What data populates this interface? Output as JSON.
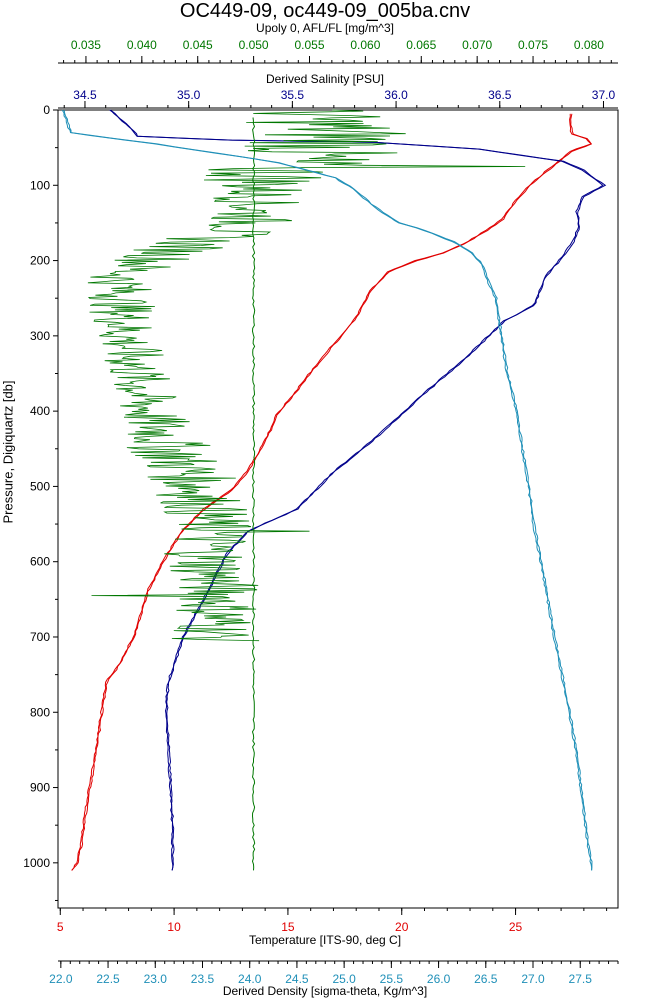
{
  "colors": {
    "afl": "#007700",
    "salinity": "#00008b",
    "temperature": "#e00000",
    "density": "#2090b8",
    "frame": "#000000"
  },
  "chart_data": {
    "type": "line",
    "title": "OC449-09, oc449-09_005ba.cnv",
    "ylabel": "Pressure, Digiquartz [db]",
    "ylim": [
      0,
      1060
    ],
    "yticks": [
      "0",
      "100",
      "200",
      "300",
      "400",
      "500",
      "600",
      "700",
      "800",
      "900",
      "1000"
    ],
    "grid": false,
    "axes": {
      "afl": {
        "label": "Upoly 0, AFL/FL [mg/m^3]",
        "range": [
          0.0325,
          0.0826
        ],
        "ticks": [
          "0.035",
          "0.040",
          "0.045",
          "0.050",
          "0.055",
          "0.060",
          "0.065",
          "0.070",
          "0.075",
          "0.080"
        ]
      },
      "salinity": {
        "label": "Derived Salinity [PSU]",
        "range": [
          34.37,
          37.07
        ],
        "ticks": [
          "34.5",
          "35.0",
          "35.5",
          "36.0",
          "36.5",
          "37.0"
        ]
      },
      "temperature": {
        "label": "Temperature [ITS-90, deg C]",
        "range": [
          4.9,
          29.5
        ],
        "ticks": [
          "5",
          "10",
          "15",
          "20",
          "25"
        ]
      },
      "density": {
        "label": "Derived Density [sigma-theta, Kg/m^3]",
        "range": [
          21.97,
          27.9
        ],
        "ticks": [
          "22.0",
          "22.5",
          "23.0",
          "23.5",
          "24.0",
          "24.5",
          "25.0",
          "25.5",
          "26.0",
          "26.5",
          "27.0",
          "27.5"
        ]
      }
    },
    "series": [
      {
        "name": "Temperature [ITS-90, deg C]",
        "points": [
          [
            27.4,
            5
          ],
          [
            27.4,
            20
          ],
          [
            27.45,
            32
          ],
          [
            28.1,
            38
          ],
          [
            28.3,
            45
          ],
          [
            27.4,
            55
          ],
          [
            26.9,
            68
          ],
          [
            26.3,
            82
          ],
          [
            25.6,
            100
          ],
          [
            25.0,
            120
          ],
          [
            24.4,
            145
          ],
          [
            23.7,
            160
          ],
          [
            22.7,
            178
          ],
          [
            21.8,
            190
          ],
          [
            20.6,
            200
          ],
          [
            19.4,
            215
          ],
          [
            18.6,
            240
          ],
          [
            18.0,
            275
          ],
          [
            17.3,
            300
          ],
          [
            16.2,
            340
          ],
          [
            15.3,
            375
          ],
          [
            14.5,
            405
          ],
          [
            13.9,
            445
          ],
          [
            13.2,
            480
          ],
          [
            12.5,
            505
          ],
          [
            11.3,
            530
          ],
          [
            10.3,
            560
          ],
          [
            9.5,
            600
          ],
          [
            8.8,
            640
          ],
          [
            8.2,
            700
          ],
          [
            7.6,
            735
          ],
          [
            7.0,
            760
          ],
          [
            6.8,
            800
          ],
          [
            6.5,
            860
          ],
          [
            6.1,
            930
          ],
          [
            5.9,
            975
          ],
          [
            5.7,
            1000
          ],
          [
            5.5,
            1010
          ]
        ]
      },
      {
        "name": "Derived Salinity [PSU]",
        "points": [
          [
            34.62,
            0
          ],
          [
            34.64,
            5
          ],
          [
            34.68,
            15
          ],
          [
            34.72,
            25
          ],
          [
            34.75,
            35
          ],
          [
            35.2,
            40
          ],
          [
            35.9,
            43
          ],
          [
            36.4,
            52
          ],
          [
            36.8,
            68
          ],
          [
            36.9,
            80
          ],
          [
            37.0,
            100
          ],
          [
            36.9,
            115
          ],
          [
            36.87,
            135
          ],
          [
            36.88,
            155
          ],
          [
            36.85,
            175
          ],
          [
            36.8,
            195
          ],
          [
            36.72,
            220
          ],
          [
            36.66,
            260
          ],
          [
            36.52,
            280
          ],
          [
            36.33,
            330
          ],
          [
            36.14,
            375
          ],
          [
            36.04,
            400
          ],
          [
            35.88,
            440
          ],
          [
            35.7,
            480
          ],
          [
            35.52,
            530
          ],
          [
            35.28,
            560
          ],
          [
            35.18,
            590
          ],
          [
            35.07,
            650
          ],
          [
            34.97,
            700
          ],
          [
            34.9,
            760
          ],
          [
            34.89,
            790
          ],
          [
            34.9,
            850
          ],
          [
            34.92,
            950
          ],
          [
            34.92,
            1010
          ]
        ]
      },
      {
        "name": "Upoly 0, AFL/FL [mg/m^3]",
        "style": "noisy",
        "profile": [
          [
            0,
            0.0545,
            0.006
          ],
          [
            40,
            0.058,
            0.008
          ],
          [
            75,
            0.052,
            0.008
          ],
          [
            110,
            0.0505,
            0.004
          ],
          [
            155,
            0.0495,
            0.004
          ],
          [
            180,
            0.044,
            0.004
          ],
          [
            220,
            0.038,
            0.003
          ],
          [
            300,
            0.0385,
            0.003
          ],
          [
            350,
            0.0395,
            0.003
          ],
          [
            400,
            0.0405,
            0.003
          ],
          [
            450,
            0.0425,
            0.004
          ],
          [
            500,
            0.045,
            0.004
          ],
          [
            550,
            0.046,
            0.004
          ],
          [
            600,
            0.046,
            0.004
          ],
          [
            650,
            0.047,
            0.004
          ],
          [
            705,
            0.0465,
            0.004
          ]
        ],
        "spikes": [
          [
            75,
            0.0743
          ],
          [
            148,
            0.0802
          ],
          [
            560,
            0.055
          ],
          [
            645,
            0.0355
          ]
        ],
        "baseline": 0.05,
        "baseline_range": [
          10,
          1010
        ]
      },
      {
        "name": "Derived Density [sigma-theta, Kg/m^3]",
        "points": [
          [
            22.02,
            0
          ],
          [
            22.07,
            20
          ],
          [
            22.1,
            30
          ],
          [
            22.5,
            37
          ],
          [
            23.0,
            45
          ],
          [
            23.4,
            53
          ],
          [
            23.9,
            62
          ],
          [
            24.3,
            70
          ],
          [
            24.6,
            80
          ],
          [
            24.9,
            90
          ],
          [
            25.1,
            105
          ],
          [
            25.28,
            125
          ],
          [
            25.45,
            140
          ],
          [
            25.58,
            150
          ],
          [
            25.85,
            160
          ],
          [
            26.15,
            175
          ],
          [
            26.35,
            190
          ],
          [
            26.45,
            205
          ],
          [
            26.53,
            230
          ],
          [
            26.6,
            250
          ],
          [
            26.66,
            300
          ],
          [
            26.72,
            350
          ],
          [
            26.82,
            400
          ],
          [
            26.88,
            450
          ],
          [
            26.95,
            500
          ],
          [
            27.0,
            550
          ],
          [
            27.08,
            600
          ],
          [
            27.15,
            650
          ],
          [
            27.22,
            700
          ],
          [
            27.3,
            750
          ],
          [
            27.38,
            800
          ],
          [
            27.45,
            850
          ],
          [
            27.5,
            900
          ],
          [
            27.55,
            950
          ],
          [
            27.62,
            1010
          ]
        ]
      }
    ]
  }
}
